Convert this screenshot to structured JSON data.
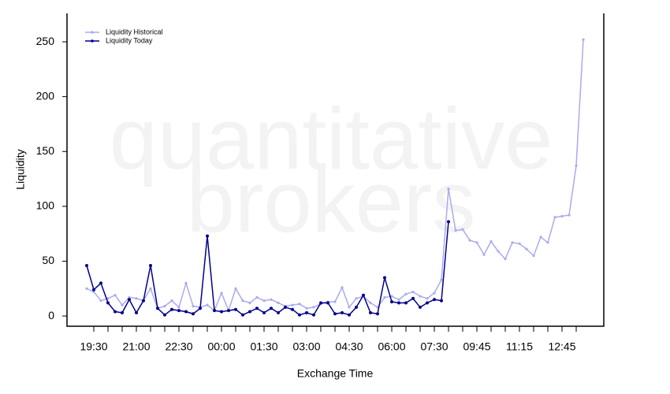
{
  "chart_data": {
    "type": "line",
    "watermark": [
      "quantitative",
      "brokers"
    ],
    "x_label": "Exchange Time",
    "y_label": "Liquidity",
    "categories": [
      null,
      "19:30",
      null,
      null,
      null,
      null,
      null,
      "21:00",
      null,
      null,
      null,
      null,
      null,
      "22:30",
      null,
      null,
      null,
      null,
      null,
      "00:00",
      null,
      null,
      null,
      null,
      null,
      "01:30",
      null,
      null,
      null,
      null,
      null,
      "03:00",
      null,
      null,
      null,
      null,
      null,
      "04:30",
      null,
      null,
      null,
      null,
      null,
      "06:00",
      null,
      null,
      null,
      null,
      null,
      "07:30",
      null,
      null,
      null,
      null,
      null,
      "09:45",
      null,
      null,
      null,
      null,
      null,
      "11:15",
      null,
      null,
      null,
      null,
      null,
      "12:45",
      null,
      null,
      null
    ],
    "series": [
      {
        "name": "Liquidity Historical",
        "color": "#aaaaee",
        "values": [
          25,
          22,
          14,
          16,
          19,
          10,
          17,
          16,
          14,
          25,
          7,
          9,
          14,
          8,
          30,
          9,
          8,
          10,
          5,
          21,
          5,
          25,
          14,
          12,
          17,
          14,
          15,
          12,
          9,
          10,
          11,
          7,
          8,
          11,
          13,
          13,
          26,
          8,
          16,
          18,
          12,
          8,
          17,
          18,
          15,
          20,
          22,
          18,
          16,
          21,
          33,
          116,
          78,
          79,
          69,
          67,
          56,
          68,
          59,
          52,
          67,
          66,
          61,
          55,
          72,
          67,
          90,
          91,
          92,
          137,
          252
        ]
      },
      {
        "name": "Liquidity Today",
        "color": "#00008b",
        "values": [
          46,
          24,
          30,
          12,
          4,
          3,
          15,
          3,
          14,
          46,
          7,
          1,
          6,
          5,
          4,
          2,
          7,
          73,
          5,
          4,
          5,
          6,
          1,
          4,
          7,
          3,
          7,
          3,
          8,
          6,
          1,
          3,
          1,
          12,
          12,
          2,
          3,
          1,
          8,
          19,
          3,
          2,
          35,
          13,
          12,
          12,
          16,
          8,
          12,
          15,
          14,
          86,
          null,
          null,
          null,
          null,
          null,
          null,
          null,
          null,
          null,
          null,
          null,
          null,
          null,
          null,
          null,
          null,
          null,
          null,
          null
        ]
      }
    ],
    "ylim": [
      -9.3,
      275.9
    ],
    "yticks": [
      0,
      50,
      100,
      150,
      200,
      250
    ],
    "legend": "top-left",
    "grid": false
  }
}
